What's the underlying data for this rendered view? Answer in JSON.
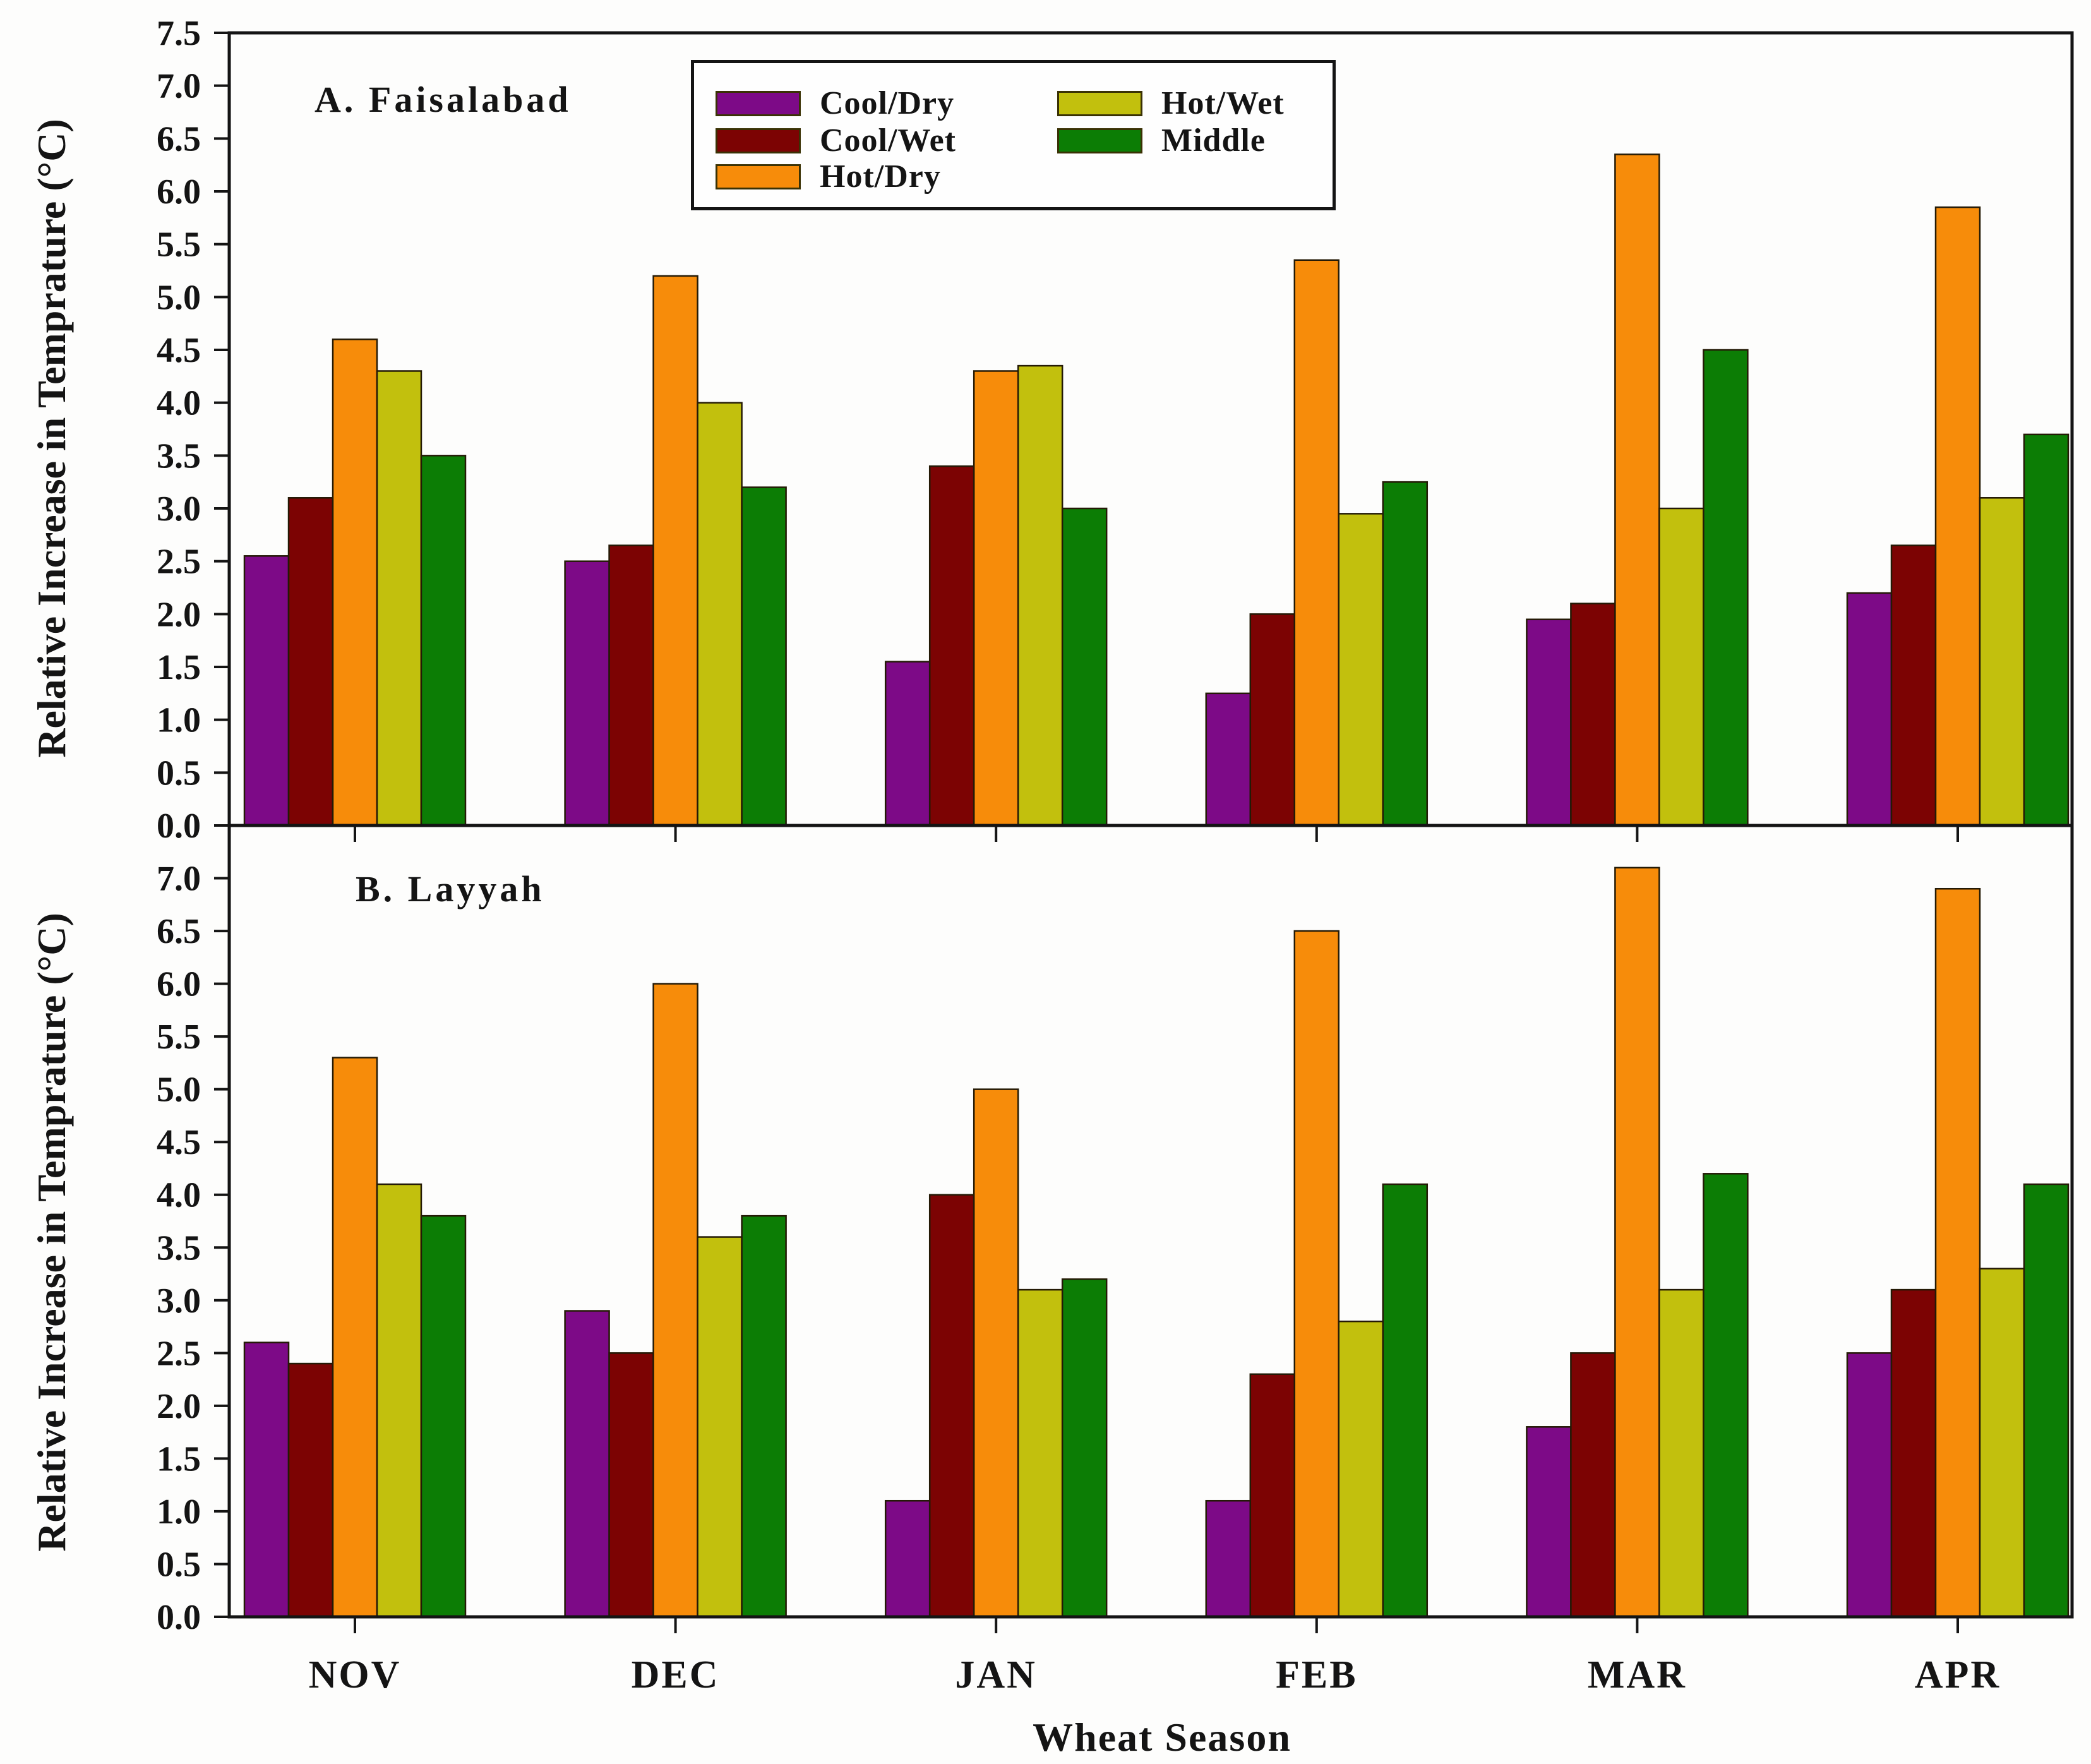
{
  "figure": {
    "xlabel": "Wheat Season",
    "background": "#fdfdfc",
    "axis_color": "#141414"
  },
  "legend": {
    "position": "top-center-inside",
    "items": [
      {
        "label": "Cool/Dry",
        "color": "#7d0a87"
      },
      {
        "label": "Cool/Wet",
        "color": "#7c0303"
      },
      {
        "label": "Hot/Dry",
        "color": "#f78c0a"
      },
      {
        "label": "Hot/Wet",
        "color": "#c2c00d"
      },
      {
        "label": "Middle",
        "color": "#0c7d05"
      }
    ]
  },
  "chart_data": [
    {
      "type": "bar",
      "title": "A. Faisalabad",
      "xlabel": "Wheat Season",
      "ylabel": "Relative Increase in Temprature (°C)",
      "ylim": [
        0,
        7.5
      ],
      "ytick_step": 0.5,
      "grid": false,
      "legend_position": "top-center-inside",
      "yticklabels": [
        "0.0",
        "0.5",
        "1.0",
        "1.5",
        "2.0",
        "2.5",
        "3.0",
        "3.5",
        "4.0",
        "4.5",
        "5.0",
        "5.5",
        "6.0",
        "6.5",
        "7.0",
        "7.5"
      ],
      "categories": [
        "NOV",
        "DEC",
        "JAN",
        "FEB",
        "MAR",
        "APR"
      ],
      "series": [
        {
          "name": "Cool/Dry",
          "color": "#7d0a87",
          "values": [
            2.55,
            2.5,
            1.55,
            1.25,
            1.95,
            2.2
          ]
        },
        {
          "name": "Cool/Wet",
          "color": "#7c0303",
          "values": [
            3.1,
            2.65,
            3.4,
            2.0,
            2.1,
            2.65
          ]
        },
        {
          "name": "Hot/Dry",
          "color": "#f78c0a",
          "values": [
            4.6,
            5.2,
            4.3,
            5.35,
            6.35,
            5.85
          ]
        },
        {
          "name": "Hot/Wet",
          "color": "#c2c00d",
          "values": [
            4.3,
            4.0,
            4.35,
            2.95,
            3.0,
            3.1
          ]
        },
        {
          "name": "Middle",
          "color": "#0c7d05",
          "values": [
            3.5,
            3.2,
            3.0,
            3.25,
            4.5,
            3.7
          ]
        }
      ]
    },
    {
      "type": "bar",
      "title": "B. Layyah",
      "xlabel": "Wheat Season",
      "ylabel": "Relative Increase in Temprature (°C)",
      "ylim": [
        0,
        7.5
      ],
      "ytick_step": 0.5,
      "grid": false,
      "yticklabels": [
        "0.0",
        "0.5",
        "1.0",
        "1.5",
        "2.0",
        "2.5",
        "3.0",
        "3.5",
        "4.0",
        "4.5",
        "5.0",
        "5.5",
        "6.0",
        "6.5",
        "7.0"
      ],
      "categories": [
        "NOV",
        "DEC",
        "JAN",
        "FEB",
        "MAR",
        "APR"
      ],
      "series": [
        {
          "name": "Cool/Dry",
          "color": "#7d0a87",
          "values": [
            2.6,
            2.9,
            1.1,
            1.1,
            1.8,
            2.5
          ]
        },
        {
          "name": "Cool/Wet",
          "color": "#7c0303",
          "values": [
            2.4,
            2.5,
            4.0,
            2.3,
            2.5,
            3.1
          ]
        },
        {
          "name": "Hot/Dry",
          "color": "#f78c0a",
          "values": [
            5.3,
            6.0,
            5.0,
            6.5,
            7.1,
            6.9
          ]
        },
        {
          "name": "Hot/Wet",
          "color": "#c2c00d",
          "values": [
            4.1,
            3.6,
            3.1,
            2.8,
            3.1,
            3.3
          ]
        },
        {
          "name": "Middle",
          "color": "#0c7d05",
          "values": [
            3.8,
            3.8,
            3.2,
            4.1,
            4.2,
            4.1
          ]
        }
      ]
    }
  ]
}
